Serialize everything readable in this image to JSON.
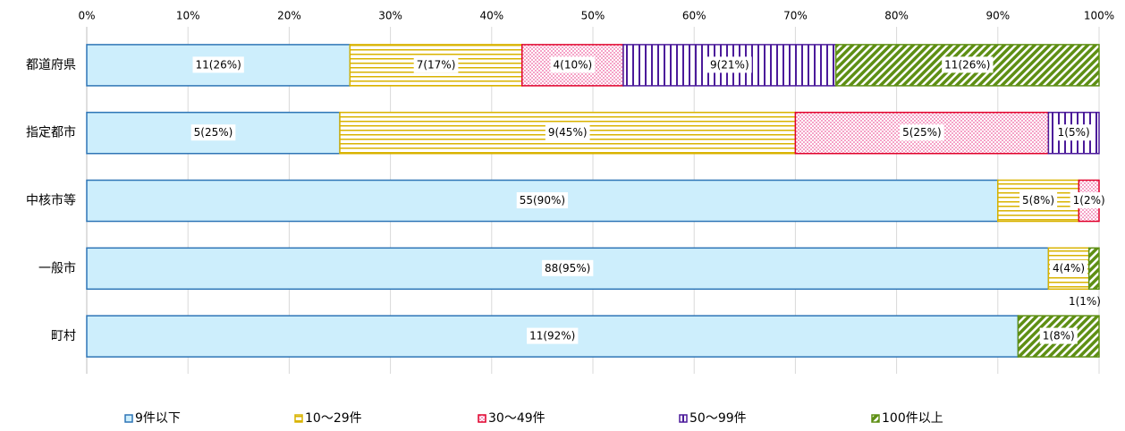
{
  "chart_data": {
    "type": "stacked_bar_100_horizontal",
    "categories": [
      "都道府県",
      "指定都市",
      "中核市等",
      "一般市",
      "町村"
    ],
    "series": [
      {
        "name": "9件以下",
        "color": "#2e75b6",
        "fill": "#cdeefc",
        "pattern": "solid",
        "values": [
          26,
          25,
          90,
          95,
          92
        ],
        "value_labels": [
          "11(26%)",
          "5(25%)",
          "55(90%)",
          "88(95%)",
          "11(92%)"
        ]
      },
      {
        "name": "10～29件",
        "color": "#d9b300",
        "pattern": "hlines",
        "values": [
          17,
          45,
          8,
          4,
          0
        ],
        "value_labels": [
          "7(17%)",
          "9(45%)",
          "5(8%)",
          "4(4%)",
          null
        ]
      },
      {
        "name": "30～49件",
        "color": "#e0002a",
        "pattern": "checker",
        "values": [
          10,
          25,
          2,
          0,
          0
        ],
        "value_labels": [
          "4(10%)",
          "5(25%)",
          "1(2%)",
          null,
          null
        ]
      },
      {
        "name": "50～99件",
        "color": "#4b1a9a",
        "pattern": "vlines",
        "values": [
          21,
          5,
          0,
          0,
          0
        ],
        "value_labels": [
          "9(21%)",
          "1(5%)",
          null,
          null,
          null
        ]
      },
      {
        "name": "100件以上",
        "color": "#5e8f14",
        "pattern": "diagonal",
        "values": [
          26,
          0,
          0,
          1,
          8
        ],
        "value_labels": [
          "11(26%)",
          null,
          null,
          "1(1%)",
          "1(8%)"
        ]
      }
    ],
    "xlim": [
      0,
      100
    ],
    "xticks": [
      {
        "value": 0,
        "label": "0%"
      },
      {
        "value": 10,
        "label": "10%"
      },
      {
        "value": 20,
        "label": "20%"
      },
      {
        "value": 30,
        "label": "30%"
      },
      {
        "value": 40,
        "label": "40%"
      },
      {
        "value": 50,
        "label": "50%"
      },
      {
        "value": 60,
        "label": "60%"
      },
      {
        "value": 70,
        "label": "70%"
      },
      {
        "value": 80,
        "label": "80%"
      },
      {
        "value": 90,
        "label": "90%"
      },
      {
        "value": 100,
        "label": "100%"
      }
    ],
    "grid": true,
    "legend": "bottom"
  }
}
